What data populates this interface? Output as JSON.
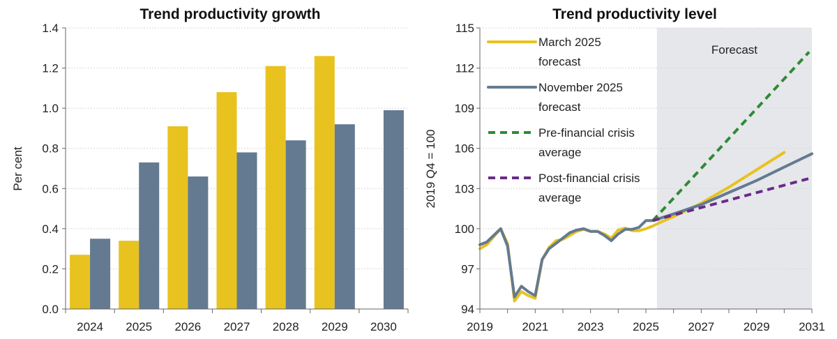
{
  "chart_data": [
    {
      "type": "bar",
      "title": "Trend productivity growth",
      "xlabel": "",
      "ylabel": "Per cent",
      "ylim": [
        0,
        1.4
      ],
      "yticks": [
        "0.0",
        "0.2",
        "0.4",
        "0.6",
        "0.8",
        "1.0",
        "1.2",
        "1.4"
      ],
      "grid": true,
      "categories": [
        "2024",
        "2025",
        "2026",
        "2027",
        "2028",
        "2029",
        "2030"
      ],
      "series": [
        {
          "color": "#E8C21F",
          "values": [
            0.27,
            0.34,
            0.91,
            1.08,
            1.21,
            1.26,
            null
          ]
        },
        {
          "color": "#647A91",
          "values": [
            0.35,
            0.73,
            0.66,
            0.78,
            0.84,
            0.92,
            0.99
          ]
        }
      ]
    },
    {
      "type": "line",
      "title": "Trend productivity level",
      "xlabel": "",
      "ylabel": "2019 Q4 = 100",
      "xlim": [
        2019,
        2031
      ],
      "ylim": [
        94,
        115
      ],
      "xticks": [
        "2019",
        "2021",
        "2023",
        "2025",
        "2027",
        "2029",
        "2031"
      ],
      "yticks": [
        "94",
        "97",
        "100",
        "103",
        "106",
        "109",
        "112",
        "115"
      ],
      "grid": true,
      "legend": "top-left",
      "annotation": {
        "text": "Forecast",
        "shaded_from": 2025.4,
        "color": "#E6E7EB"
      },
      "series": [
        {
          "name": "March 2025 forecast",
          "name_lines": [
            "March 2025",
            "forecast"
          ],
          "color": "#E8C21F",
          "style": "solid",
          "x": [
            2019,
            2019.25,
            2019.5,
            2019.75,
            2020,
            2020.25,
            2020.5,
            2020.75,
            2021,
            2021.25,
            2021.5,
            2021.75,
            2022,
            2022.25,
            2022.5,
            2022.75,
            2023,
            2023.25,
            2023.5,
            2023.75,
            2024,
            2024.25,
            2024.5,
            2024.75,
            2025,
            2025.25,
            2025.5,
            2026,
            2027,
            2028,
            2029,
            2030
          ],
          "y": [
            98.5,
            98.8,
            99.4,
            100.0,
            98.9,
            94.6,
            95.3,
            95.0,
            94.8,
            97.7,
            98.6,
            99.1,
            99.2,
            99.5,
            99.8,
            99.95,
            99.8,
            99.8,
            99.6,
            99.3,
            99.9,
            100.05,
            99.85,
            99.85,
            100.0,
            100.2,
            100.45,
            100.9,
            101.9,
            103.1,
            104.4,
            105.7
          ]
        },
        {
          "name": "November 2025 forecast",
          "name_lines": [
            "November 2025",
            "forecast"
          ],
          "color": "#647A91",
          "style": "solid",
          "x": [
            2019,
            2019.25,
            2019.5,
            2019.75,
            2020,
            2020.25,
            2020.5,
            2020.75,
            2021,
            2021.25,
            2021.5,
            2021.75,
            2022,
            2022.25,
            2022.5,
            2022.75,
            2023,
            2023.25,
            2023.5,
            2023.75,
            2024,
            2024.25,
            2024.5,
            2024.75,
            2025,
            2025.25,
            2026,
            2027,
            2028,
            2029,
            2030,
            2031
          ],
          "y": [
            98.8,
            99.0,
            99.5,
            100.0,
            98.7,
            94.9,
            95.7,
            95.3,
            95.0,
            97.7,
            98.5,
            98.9,
            99.3,
            99.7,
            99.9,
            100.0,
            99.8,
            99.8,
            99.5,
            99.1,
            99.6,
            99.95,
            99.95,
            100.1,
            100.6,
            100.6,
            101.1,
            101.8,
            102.7,
            103.6,
            104.6,
            105.6
          ]
        },
        {
          "name": "Pre-financial crisis average",
          "name_lines": [
            "Pre-financial crisis",
            "average"
          ],
          "color": "#2E8B35",
          "style": "dashed",
          "x": [
            2025.25,
            2030.9
          ],
          "y": [
            100.6,
            113.2
          ]
        },
        {
          "name": "Post-financial crisis average",
          "name_lines": [
            "Post-financial crisis",
            "average"
          ],
          "color": "#6A2A8A",
          "style": "dashed",
          "x": [
            2025.25,
            2030.9
          ],
          "y": [
            100.6,
            103.75
          ]
        }
      ]
    }
  ]
}
